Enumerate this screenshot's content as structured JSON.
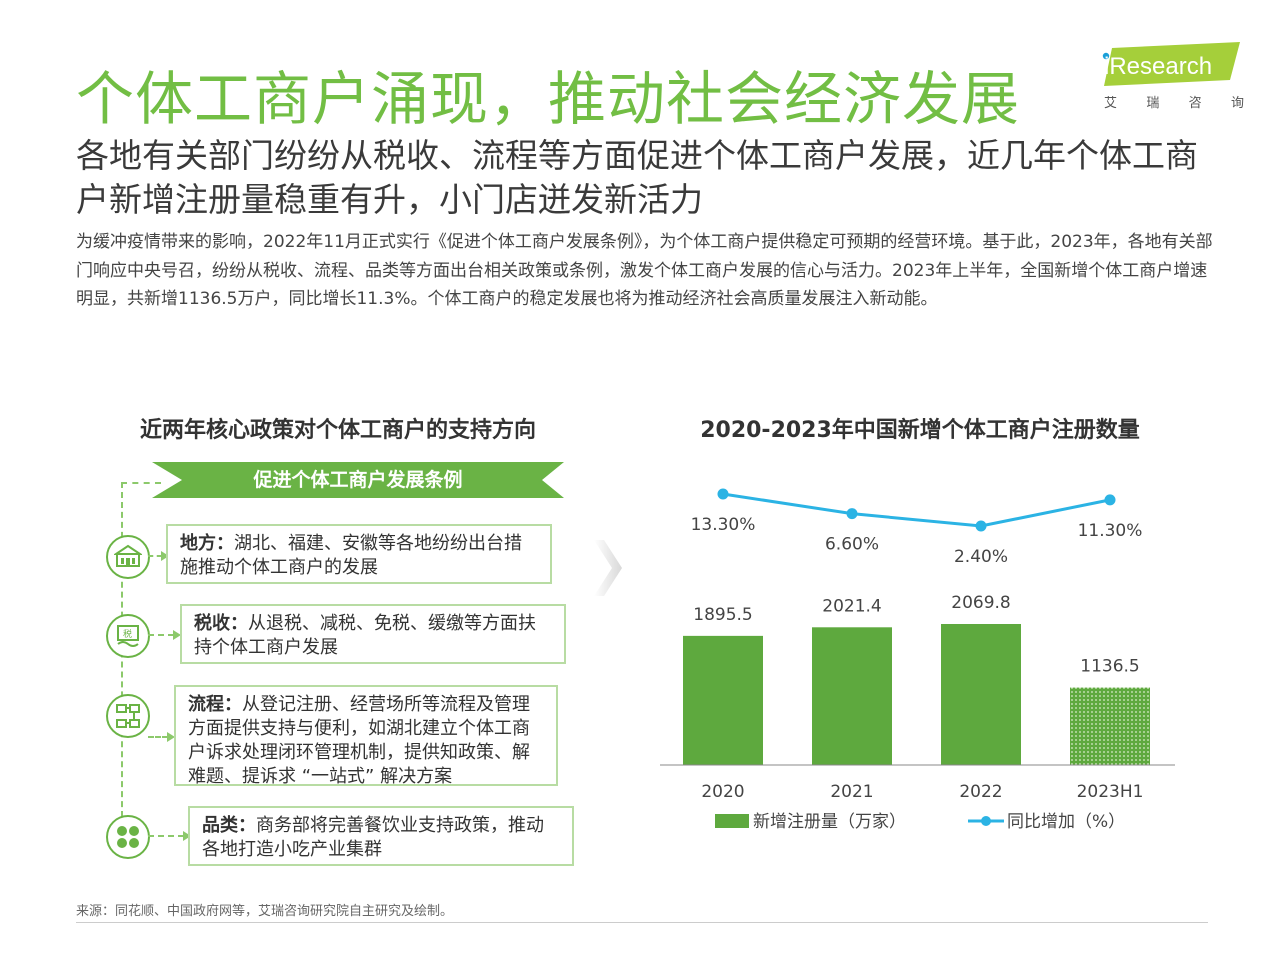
{
  "header": {
    "title": "个体工商户涌现，推动社会经济发展",
    "logo_text": "iResearch",
    "logo_cn": [
      "艾",
      "瑞",
      "咨",
      "询"
    ],
    "subtitle": "各地有关部门纷纷从税收、流程等方面促进个体工商户发展，近几年个体工商户新增注册量稳重有升，小门店迸发新活力",
    "description": "为缓冲疫情带来的影响，2022年11月正式实行《促进个体工商户发展条例》，为个体工商户提供稳定可预期的经营环境。基于此，2023年，各地有关部门响应中央号召，纷纷从税收、流程、品类等方面出台相关政策或条例，激发个体工商户发展的信心与活力。2023年上半年，全国新增个体工商户增速明显，共新增1136.5万户，同比增长11.3%。个体工商户的稳定发展也将为推动经济社会高质量发展注入新动能。"
  },
  "left_panel": {
    "title": "近两年核心政策对个体工商户的支持方向",
    "banner": "促进个体工商户发展条例",
    "items": [
      {
        "key": "地方：",
        "text": "湖北、福建、安徽等各地纷纷出台措施推动个体工商户的发展",
        "icon": "government-building-icon"
      },
      {
        "key": "税收：",
        "text": "从退税、减税、免税、缓缴等方面扶持个体工商户发展",
        "icon": "tax-icon",
        "icon_label": "税"
      },
      {
        "key": "流程：",
        "text": "从登记注册、经营场所等流程及管理方面提供支持与便利，如湖北建立个体工商户诉求处理闭环管理机制，提供知政策、解难题、提诉求 “一站式” 解决方案",
        "icon": "process-flow-icon"
      },
      {
        "key": "品类：",
        "text": "商务部将完善餐饮业支持政策，推动各地打造小吃产业集群",
        "icon": "category-grid-icon"
      }
    ]
  },
  "chart_data": {
    "type": "bar",
    "title": "2020-2023年中国新增个体工商户注册数量",
    "categories": [
      "2020",
      "2021",
      "2022",
      "2023H1"
    ],
    "series": [
      {
        "name": "新增注册量（万家）",
        "type": "bar",
        "values": [
          1895.5,
          2021.4,
          2069.8,
          1136.5
        ],
        "labels": [
          "1895.5",
          "2021.4",
          "2069.8",
          "1136.5"
        ],
        "color": "#5ea93e"
      },
      {
        "name": "同比增加（%）",
        "type": "line",
        "values": [
          13.3,
          6.6,
          2.4,
          11.3
        ],
        "labels": [
          "13.30%",
          "6.60%",
          "2.40%",
          "11.30%"
        ],
        "color": "#2bb3e4"
      }
    ],
    "last_bar_pattern": "dotted"
  },
  "footer": {
    "source": "来源：同花顺、中国政府网等，艾瑞咨询研究院自主研究及绘制。"
  },
  "colors": {
    "brand_green": "#72be44",
    "bar_green": "#5ea93e",
    "line_blue": "#2bb3e4"
  }
}
